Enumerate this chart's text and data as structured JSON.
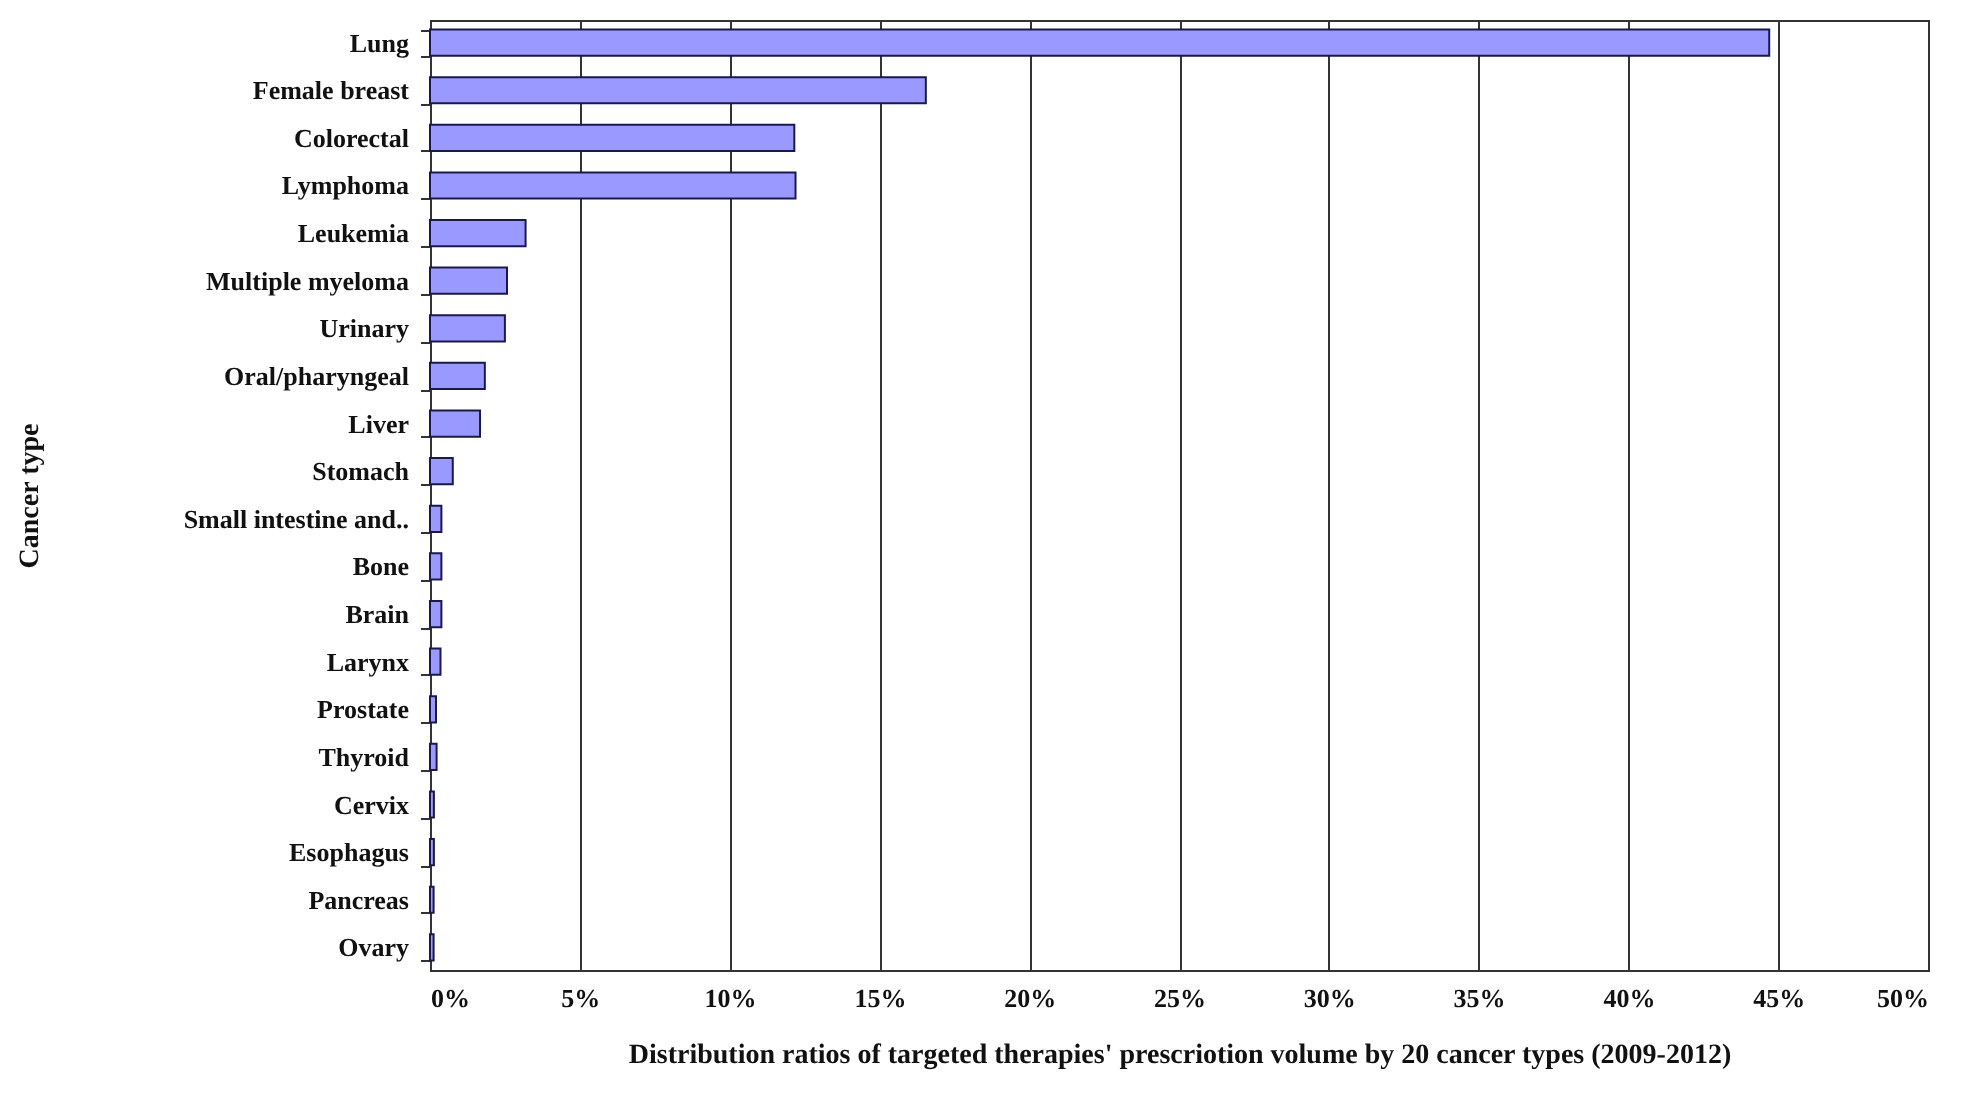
{
  "chart_data": {
    "type": "bar",
    "orientation": "horizontal",
    "xlabel": "Distribution  ratios of targeted therapies' prescriotion volume by 20 cancer types (2009-2012)",
    "ylabel": "Cancer type",
    "categories": [
      "Lung",
      "Female breast",
      "Colorectal",
      "Lymphoma",
      "Leukemia",
      "Multiple myeloma",
      "Urinary",
      "Oral/pharyngeal",
      "Liver",
      "Stomach",
      "Small intestine and..",
      "Bone",
      "Brain",
      "Larynx",
      "Prostate",
      "Thyroid",
      "Cervix",
      "Esophagus",
      "Pancreas",
      "Ovary"
    ],
    "values": [
      44.7,
      16.55,
      12.16,
      12.2,
      3.19,
      2.57,
      2.5,
      1.83,
      1.67,
      0.76,
      0.38,
      0.38,
      0.38,
      0.35,
      0.2,
      0.22,
      0.13,
      0.13,
      0.12,
      0.12
    ],
    "color": "#9999ff",
    "xlim": [
      0,
      50
    ],
    "xticks": [
      {
        "value": 0,
        "label": "0%"
      },
      {
        "value": 5,
        "label": "5%"
      },
      {
        "value": 10,
        "label": "10%"
      },
      {
        "value": 15,
        "label": "15%"
      },
      {
        "value": 20,
        "label": "20%"
      },
      {
        "value": 25,
        "label": "25%"
      },
      {
        "value": 30,
        "label": "30%"
      },
      {
        "value": 35,
        "label": "35%"
      },
      {
        "value": 40,
        "label": "40%"
      },
      {
        "value": 45,
        "label": "45%"
      },
      {
        "value": 50,
        "label": "50%"
      }
    ],
    "grid": "x"
  }
}
